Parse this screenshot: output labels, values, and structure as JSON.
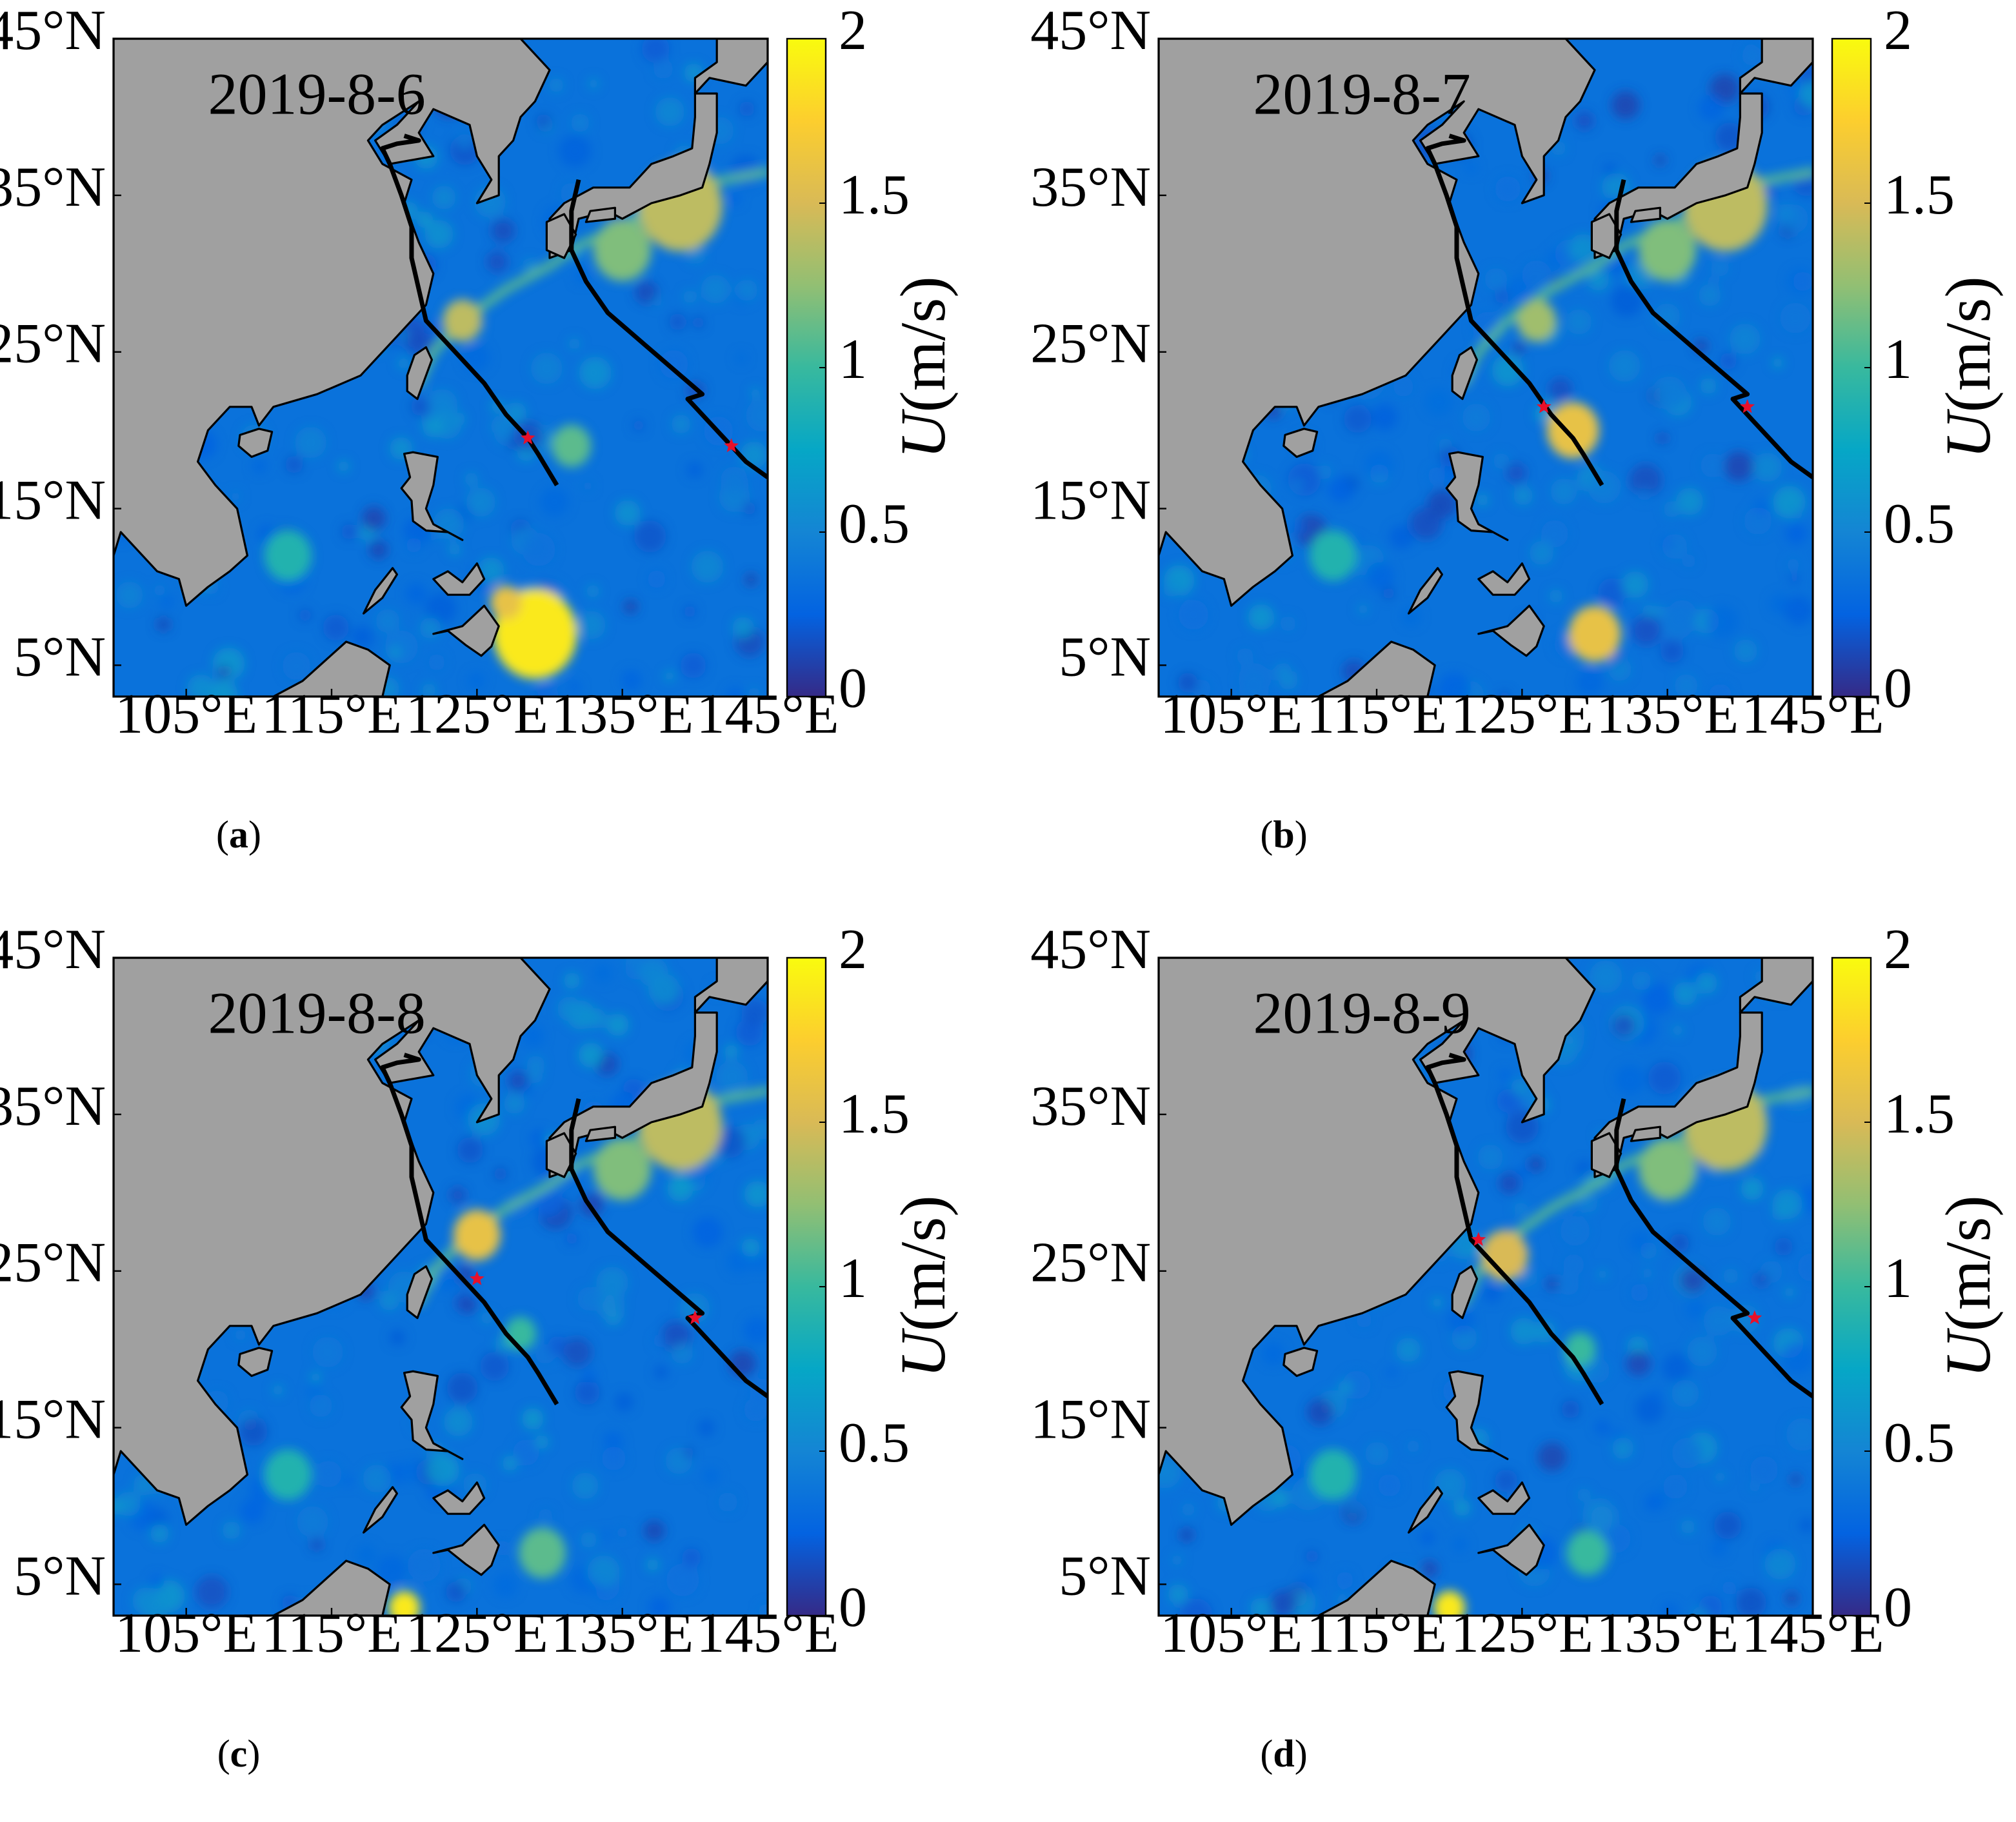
{
  "figure": {
    "colorbar": {
      "title_var": "U",
      "title_unit": "(m/s)",
      "ticks": [
        "0",
        "0.5",
        "1",
        "1.5",
        "2"
      ],
      "min": 0,
      "max": 2,
      "colormap": [
        "#352a87",
        "#0363e1",
        "#1485d4",
        "#06a7c6",
        "#38b99e",
        "#92bf73",
        "#d9ba56",
        "#fcce2e",
        "#f9fb0e"
      ]
    },
    "lat_ticks": [
      "45°N",
      "35°N",
      "25°N",
      "15°N",
      "5°N"
    ],
    "lon_ticks": [
      "105°E",
      "115°E",
      "125°E",
      "135°E",
      "145°E"
    ],
    "colors": {
      "land": "#a0a0a0",
      "ocean": "#2a45c8",
      "track": "#000000",
      "marker": "#e8102a"
    }
  },
  "panels": [
    {
      "id": "a",
      "caption_open": "(",
      "caption_letter": "a",
      "caption_close": ")",
      "date": "2019-8-6",
      "markers": [
        {
          "lon": 128.5,
          "lat": 19.5
        },
        {
          "lon": 142.5,
          "lat": 19.0
        }
      ]
    },
    {
      "id": "b",
      "caption_open": "(",
      "caption_letter": "b",
      "caption_close": ")",
      "date": "2019-8-7",
      "markers": [
        {
          "lon": 126.5,
          "lat": 21.5
        },
        {
          "lon": 140.5,
          "lat": 21.5
        }
      ]
    },
    {
      "id": "c",
      "caption_open": "(",
      "caption_letter": "c",
      "caption_close": ")",
      "date": "2019-8-8",
      "markers": [
        {
          "lon": 125.0,
          "lat": 24.5
        },
        {
          "lon": 140.0,
          "lat": 22.0
        }
      ]
    },
    {
      "id": "d",
      "caption_open": "(",
      "caption_letter": "d",
      "caption_close": ")",
      "date": "2019-8-9",
      "markers": [
        {
          "lon": 122.0,
          "lat": 27.0
        },
        {
          "lon": 141.0,
          "lat": 22.0
        }
      ]
    }
  ]
}
